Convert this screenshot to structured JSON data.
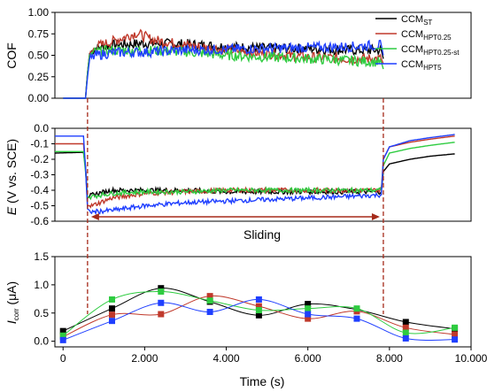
{
  "chart_data": [
    {
      "id": "cof",
      "type": "line",
      "ylabel": "COF",
      "ylim": [
        0,
        1.0
      ],
      "yticks": [
        "0.00",
        "0.25",
        "0.50",
        "0.75",
        "1.00"
      ],
      "xlim": [
        -200,
        10000
      ],
      "grid": false,
      "legend_position": "top-right",
      "legend": [
        {
          "main": "CCM",
          "sub": "ST",
          "color": "#000000"
        },
        {
          "main": "CCM",
          "sub": "HPT0.25",
          "color": "#c0392b"
        },
        {
          "main": "CCM",
          "sub": "HPT0.25-st",
          "color": "#2ecc40"
        },
        {
          "main": "CCM",
          "sub": "HPT5",
          "color": "#1f3fff"
        }
      ],
      "series": [
        {
          "color": "#000000",
          "x": [
            0,
            550,
            600,
            650,
            800,
            1200,
            2000,
            3000,
            4000,
            5000,
            6000,
            7000,
            7800,
            7850
          ],
          "y": [
            0.0,
            0.0,
            0.3,
            0.52,
            0.58,
            0.62,
            0.64,
            0.63,
            0.6,
            0.58,
            0.58,
            0.56,
            0.56,
            0.46
          ]
        },
        {
          "color": "#c0392b",
          "x": [
            0,
            550,
            600,
            650,
            800,
            1200,
            1800,
            2200,
            3000,
            4000,
            5000,
            6000,
            7000,
            7800,
            7850
          ],
          "y": [
            0.0,
            0.0,
            0.3,
            0.5,
            0.6,
            0.66,
            0.76,
            0.68,
            0.62,
            0.56,
            0.52,
            0.48,
            0.46,
            0.46,
            0.4
          ]
        },
        {
          "color": "#2ecc40",
          "x": [
            0,
            550,
            600,
            650,
            800,
            1200,
            2000,
            3000,
            4000,
            5000,
            6000,
            7000,
            7800,
            7850
          ],
          "y": [
            0.0,
            0.0,
            0.3,
            0.5,
            0.54,
            0.56,
            0.56,
            0.54,
            0.5,
            0.48,
            0.46,
            0.44,
            0.42,
            0.34
          ]
        },
        {
          "color": "#1f3fff",
          "x": [
            0,
            550,
            600,
            650,
            800,
            1200,
            2000,
            3000,
            4000,
            5000,
            6000,
            7000,
            7800,
            7850
          ],
          "y": [
            0.0,
            0.0,
            0.25,
            0.45,
            0.5,
            0.53,
            0.54,
            0.56,
            0.57,
            0.58,
            0.59,
            0.6,
            0.62,
            0.5
          ]
        }
      ]
    },
    {
      "id": "potential",
      "type": "line",
      "ylabel_italic": "E",
      "ylabel_rest": " (V vs. SCE)",
      "ylim": [
        -0.6,
        0.0
      ],
      "yticks": [
        "0.0",
        "-0.1",
        "-0.2",
        "-0.3",
        "-0.4",
        "-0.5",
        "-0.6"
      ],
      "xlim": [
        -200,
        10000
      ],
      "grid": false,
      "annotation": "Sliding",
      "series": [
        {
          "color": "#000000",
          "x": [
            -200,
            500,
            550,
            600,
            700,
            1200,
            2000,
            3000,
            4000,
            5000,
            6000,
            7000,
            7800,
            7850,
            8000,
            8500,
            9000,
            9600
          ],
          "y": [
            -0.16,
            -0.155,
            -0.25,
            -0.45,
            -0.43,
            -0.4,
            -0.4,
            -0.4,
            -0.41,
            -0.41,
            -0.41,
            -0.41,
            -0.41,
            -0.28,
            -0.23,
            -0.2,
            -0.18,
            -0.165
          ]
        },
        {
          "color": "#c0392b",
          "x": [
            -200,
            500,
            550,
            600,
            700,
            1200,
            2000,
            3000,
            4000,
            5000,
            6000,
            7000,
            7800,
            7850,
            8000,
            8500,
            9000,
            9600
          ],
          "y": [
            -0.1,
            -0.1,
            -0.25,
            -0.5,
            -0.5,
            -0.45,
            -0.42,
            -0.41,
            -0.4,
            -0.4,
            -0.4,
            -0.4,
            -0.4,
            -0.2,
            -0.12,
            -0.09,
            -0.07,
            -0.05
          ]
        },
        {
          "color": "#2ecc40",
          "x": [
            -200,
            500,
            550,
            600,
            700,
            1200,
            2000,
            3000,
            4000,
            5000,
            6000,
            7000,
            7800,
            7850,
            8000,
            8500,
            9000,
            9600
          ],
          "y": [
            -0.15,
            -0.15,
            -0.28,
            -0.45,
            -0.44,
            -0.42,
            -0.41,
            -0.41,
            -0.4,
            -0.4,
            -0.4,
            -0.4,
            -0.4,
            -0.24,
            -0.16,
            -0.13,
            -0.11,
            -0.09
          ]
        },
        {
          "color": "#1f3fff",
          "x": [
            -200,
            500,
            550,
            600,
            700,
            1200,
            2000,
            3000,
            4000,
            5000,
            6000,
            7000,
            7800,
            7850,
            8000,
            8500,
            9000,
            9600
          ],
          "y": [
            -0.05,
            -0.05,
            -0.25,
            -0.52,
            -0.54,
            -0.53,
            -0.5,
            -0.48,
            -0.47,
            -0.46,
            -0.45,
            -0.44,
            -0.43,
            -0.2,
            -0.12,
            -0.08,
            -0.06,
            -0.04
          ]
        }
      ]
    },
    {
      "id": "corrosion-current",
      "type": "scatter",
      "ylabel_italic": "I",
      "ylabel_sub": "corr",
      "ylabel_rest": " (μA)",
      "xlabel": "Time (s)",
      "ylim": [
        -0.1,
        1.5
      ],
      "yticks": [
        "0.0",
        "0.5",
        "1.0",
        "1.5"
      ],
      "xlim": [
        -200,
        10000
      ],
      "xticks": [
        0,
        2000,
        4000,
        6000,
        8000,
        10000
      ],
      "xtick_labels": [
        "0",
        "2.000",
        "4.000",
        "6.000",
        "8.000",
        "10.000"
      ],
      "grid": false,
      "x": [
        0,
        1200,
        2400,
        3600,
        4800,
        6000,
        7200,
        8400,
        9600
      ],
      "series": [
        {
          "color": "#000000",
          "y": [
            0.18,
            0.58,
            0.94,
            0.7,
            0.46,
            0.66,
            0.56,
            0.34,
            0.22
          ]
        },
        {
          "color": "#c0392b",
          "y": [
            0.08,
            0.47,
            0.48,
            0.8,
            0.62,
            0.4,
            0.53,
            0.24,
            0.12
          ]
        },
        {
          "color": "#2ecc40",
          "y": [
            0.1,
            0.74,
            0.88,
            0.72,
            0.55,
            0.58,
            0.58,
            0.15,
            0.24
          ]
        },
        {
          "color": "#1f3fff",
          "y": [
            0.02,
            0.36,
            0.68,
            0.52,
            0.74,
            0.48,
            0.4,
            0.05,
            0.03
          ]
        }
      ]
    }
  ],
  "markers": {
    "sliding_start_x": 600,
    "sliding_end_x": 7850,
    "line_color": "#a52a1a"
  }
}
